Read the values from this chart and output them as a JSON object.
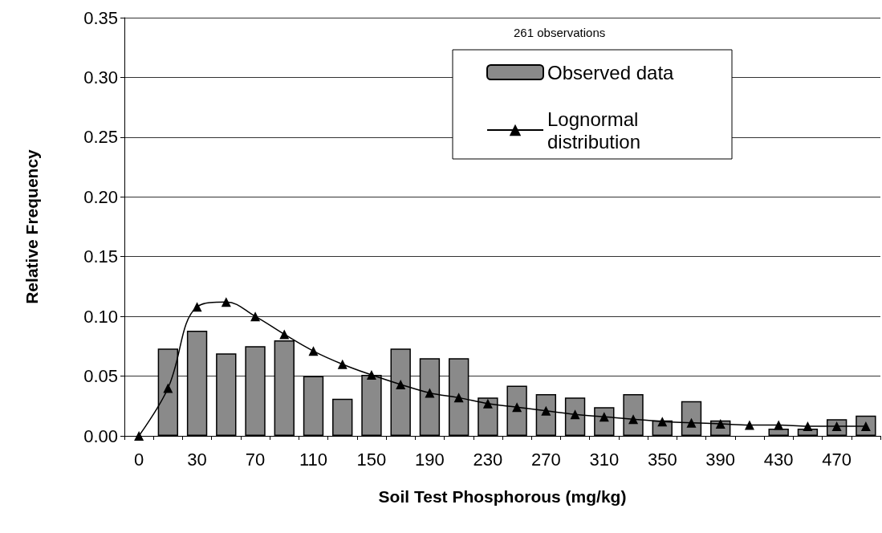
{
  "chart_data": {
    "type": "bar",
    "xlabel": "Soil Test Phosphorous (mg/kg)",
    "ylabel": "Relative Frequency",
    "legend_title": "261 observations",
    "categories": [
      "0",
      null,
      "30",
      null,
      "70",
      null,
      "110",
      null,
      "150",
      null,
      "190",
      null,
      "230",
      null,
      "270",
      null,
      "310",
      null,
      "350",
      null,
      "390",
      null,
      "430",
      null,
      "470",
      null
    ],
    "ylim": [
      0,
      0.35
    ],
    "yticks": [
      {
        "value": 0,
        "label": "0.00"
      },
      {
        "value": 0.05,
        "label": "0.05"
      },
      {
        "value": 0.1,
        "label": "0.10"
      },
      {
        "value": 0.15,
        "label": "0.15"
      },
      {
        "value": 0.2,
        "label": "0.20"
      },
      {
        "value": 0.25,
        "label": "0.25"
      },
      {
        "value": 0.3,
        "label": "0.30"
      },
      {
        "value": 0.35,
        "label": "0.35"
      }
    ],
    "grid": "y",
    "legend": "top right",
    "series": [
      {
        "name": "Observed data",
        "color": "#8a8a8a",
        "values": [
          0,
          0.073,
          0.088,
          0.069,
          0.075,
          0.08,
          0.05,
          0.031,
          0.051,
          0.073,
          0.065,
          0.065,
          0.032,
          0.042,
          0.035,
          0.032,
          0.024,
          0.035,
          0.013,
          0.029,
          0.013,
          0,
          0.006,
          0.006,
          0.014,
          0.017
        ]
      },
      {
        "name": "Lognormal distribution",
        "type": "line",
        "color": "#000000",
        "marker": "triangle",
        "values": [
          0,
          0.04,
          0.108,
          0.112,
          0.1,
          0.085,
          0.071,
          0.06,
          0.051,
          0.043,
          0.036,
          0.032,
          0.027,
          0.024,
          0.021,
          0.018,
          0.016,
          0.014,
          0.012,
          0.011,
          0.01,
          0.009,
          0.009,
          0.008,
          0.008,
          0.008
        ]
      }
    ]
  }
}
